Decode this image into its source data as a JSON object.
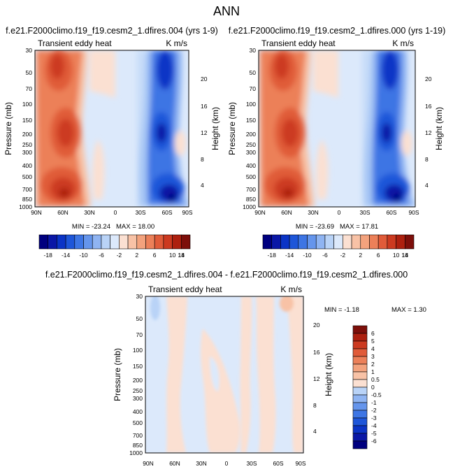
{
  "figure": {
    "title": "ANN"
  },
  "palette": {
    "colors": [
      "#00007f",
      "#0a17a6",
      "#0b34c6",
      "#1e56d9",
      "#3d75e4",
      "#6595ec",
      "#8fb4f2",
      "#b9d3f7",
      "#dce9fb",
      "#fbe0d2",
      "#f8c2a6",
      "#f3a27d",
      "#ec8059",
      "#e05b39",
      "#cc3a20",
      "#ad200f",
      "#7d0f0a"
    ],
    "bg_blue": "#dce9fb",
    "bg_red": "#fbe0d2"
  },
  "chart_data": [
    {
      "type": "heatmap",
      "title": "f.e21.F2000climo.f19_f19.cesm2_1.dfires.004 (yrs 1-9)",
      "left_label": "Transient eddy heat",
      "right_label": "K m/s",
      "ylabel": "Pressure (mb)",
      "ylabel_right": "Height (km)",
      "x_ticks": [
        "90N",
        "60N",
        "30N",
        "0",
        "30S",
        "60S",
        "90S"
      ],
      "x_values": [
        90,
        60,
        30,
        0,
        -30,
        -60,
        -90
      ],
      "y_ticks": [
        "30",
        "50",
        "70",
        "100",
        "150",
        "200",
        "250",
        "300",
        "400",
        "500",
        "700",
        "850",
        "1000"
      ],
      "y_values": [
        30,
        50,
        70,
        100,
        150,
        200,
        250,
        300,
        400,
        500,
        700,
        850,
        1000
      ],
      "height_ticks": [
        "20",
        "16",
        "12",
        "8",
        "4"
      ],
      "height_values": [
        20,
        16,
        12,
        8,
        4
      ],
      "min_label": "MIN = -23.24",
      "max_label": "MAX = 18.00",
      "min": -23.24,
      "max": 18.0
    },
    {
      "type": "heatmap",
      "title": "f.e21.F2000climo.f19_f19.cesm2_1.dfires.000 (yrs 1-19)",
      "left_label": "Transient eddy heat",
      "right_label": "K m/s",
      "ylabel": "Pressure (mb)",
      "ylabel_right": "Height (km)",
      "x_ticks": [
        "90N",
        "60N",
        "30N",
        "0",
        "30S",
        "60S",
        "90S"
      ],
      "x_values": [
        90,
        60,
        30,
        0,
        -30,
        -60,
        -90
      ],
      "y_ticks": [
        "30",
        "50",
        "70",
        "100",
        "150",
        "200",
        "250",
        "300",
        "400",
        "500",
        "700",
        "850",
        "1000"
      ],
      "y_values": [
        30,
        50,
        70,
        100,
        150,
        200,
        250,
        300,
        400,
        500,
        700,
        850,
        1000
      ],
      "height_ticks": [
        "20",
        "16",
        "12",
        "8",
        "4"
      ],
      "height_values": [
        20,
        16,
        12,
        8,
        4
      ],
      "min_label": "MIN = -23.69",
      "max_label": "MAX = 17.81",
      "min": -23.69,
      "max": 17.81
    },
    {
      "type": "heatmap",
      "title": "f.e21.F2000climo.f19_f19.cesm2_1.dfires.004 - f.e21.F2000climo.f19_f19.cesm2_1.dfires.000",
      "left_label": "Transient eddy heat",
      "right_label": "K m/s",
      "ylabel": "Pressure (mb)",
      "ylabel_right": "Height (km)",
      "x_ticks": [
        "90N",
        "60N",
        "30N",
        "0",
        "30S",
        "60S",
        "90S"
      ],
      "x_values": [
        90,
        60,
        30,
        0,
        -30,
        -60,
        -90
      ],
      "y_ticks": [
        "30",
        "50",
        "70",
        "100",
        "150",
        "200",
        "250",
        "300",
        "400",
        "500",
        "700",
        "850",
        "1000"
      ],
      "y_values": [
        30,
        50,
        70,
        100,
        150,
        200,
        250,
        300,
        400,
        500,
        700,
        850,
        1000
      ],
      "height_ticks": [
        "20",
        "16",
        "12",
        "8",
        "4"
      ],
      "height_values": [
        20,
        16,
        12,
        8,
        4
      ],
      "min_label": "MIN = -1.18",
      "max_label": "MAX =  1.30",
      "min": -1.18,
      "max": 1.3
    }
  ],
  "colorbars": {
    "horizontal": {
      "labels": [
        "-18",
        "-14",
        "-10",
        "-6",
        "-2",
        "2",
        "6",
        "10",
        "14",
        "18"
      ]
    },
    "vertical": {
      "labels": [
        "6",
        "5",
        "4",
        "3",
        "2",
        "1",
        "0.5",
        "0",
        "-0.5",
        "-1",
        "-2",
        "-3",
        "-4",
        "-5",
        "-6"
      ]
    }
  }
}
